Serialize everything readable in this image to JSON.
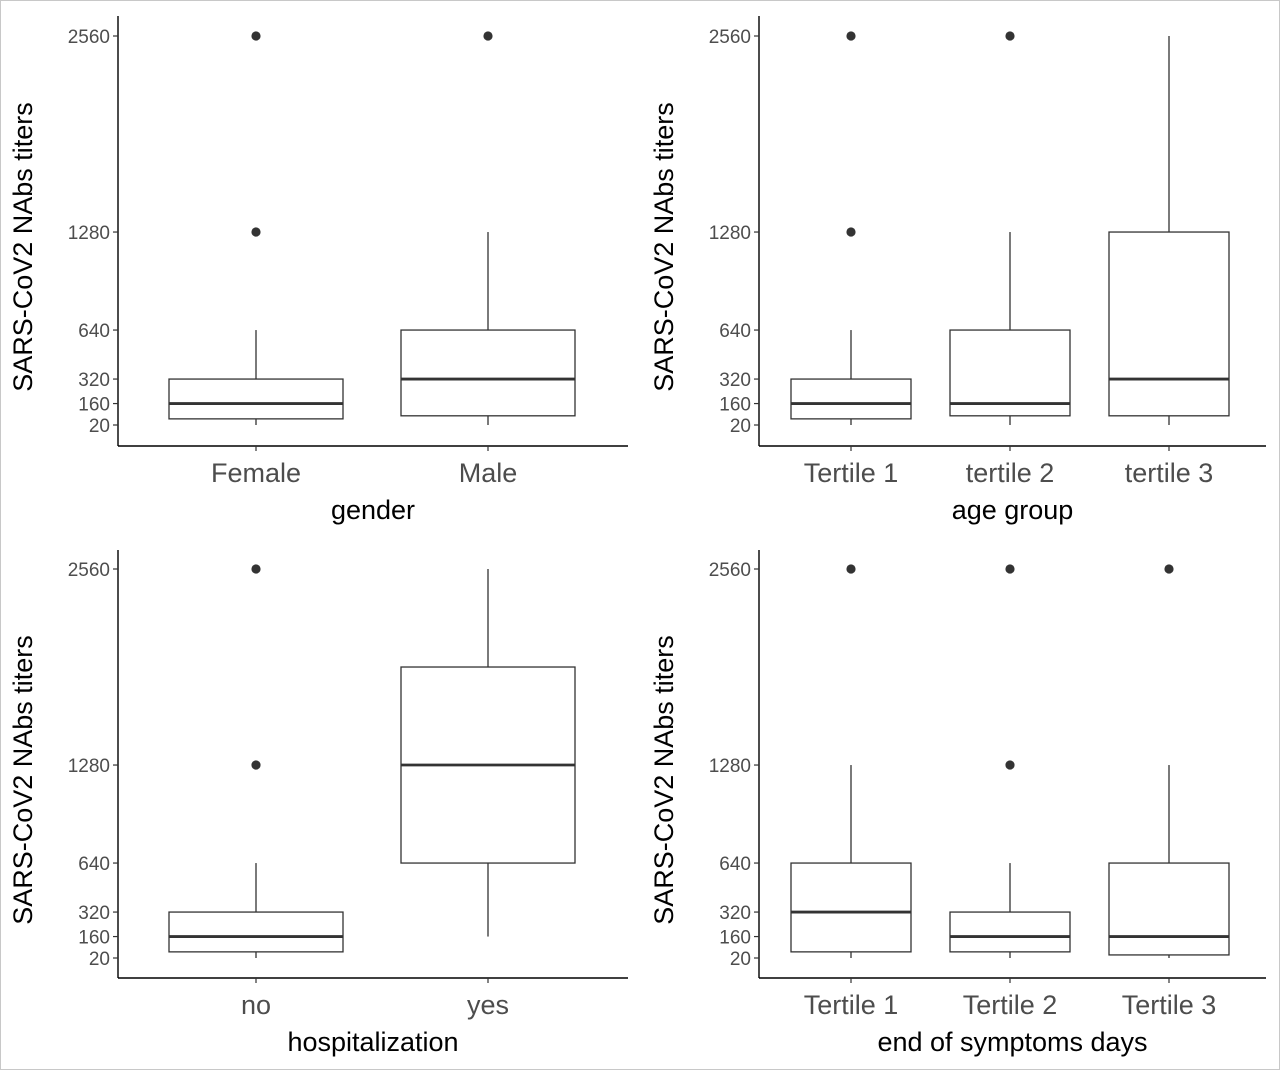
{
  "chart_data": [
    {
      "type": "box",
      "xlabel": "gender",
      "ylabel": "SARS-CoV2 NAbs titers",
      "yticks": [
        20,
        160,
        320,
        640,
        1280,
        2560
      ],
      "ylim": [
        20,
        2560
      ],
      "categories": [
        "Female",
        "Male"
      ],
      "boxes": [
        {
          "category": "Female",
          "lower_whisker": 20,
          "q1": 60,
          "median": 160,
          "q3": 320,
          "upper_whisker": 640,
          "outliers": [
            1280,
            2560
          ]
        },
        {
          "category": "Male",
          "lower_whisker": 20,
          "q1": 80,
          "median": 320,
          "q3": 640,
          "upper_whisker": 1280,
          "outliers": [
            2560
          ]
        }
      ]
    },
    {
      "type": "box",
      "xlabel": "age group",
      "ylabel": "SARS-CoV2 NAbs titers",
      "yticks": [
        20,
        160,
        320,
        640,
        1280,
        2560
      ],
      "ylim": [
        20,
        2560
      ],
      "categories": [
        "Tertile 1",
        "tertile 2",
        "tertile 3"
      ],
      "boxes": [
        {
          "category": "Tertile 1",
          "lower_whisker": 20,
          "q1": 60,
          "median": 160,
          "q3": 320,
          "upper_whisker": 640,
          "outliers": [
            1280,
            2560
          ]
        },
        {
          "category": "tertile 2",
          "lower_whisker": 20,
          "q1": 80,
          "median": 160,
          "q3": 640,
          "upper_whisker": 1280,
          "outliers": [
            2560
          ]
        },
        {
          "category": "tertile 3",
          "lower_whisker": 20,
          "q1": 80,
          "median": 320,
          "q3": 1280,
          "upper_whisker": 2560,
          "outliers": []
        }
      ]
    },
    {
      "type": "box",
      "xlabel": "hospitalization",
      "ylabel": "SARS-CoV2 NAbs titers",
      "yticks": [
        20,
        160,
        320,
        640,
        1280,
        2560
      ],
      "ylim": [
        20,
        2560
      ],
      "categories": [
        "no",
        "yes"
      ],
      "boxes": [
        {
          "category": "no",
          "lower_whisker": 20,
          "q1": 60,
          "median": 160,
          "q3": 320,
          "upper_whisker": 640,
          "outliers": [
            1280,
            2560
          ]
        },
        {
          "category": "yes",
          "lower_whisker": 160,
          "q1": 640,
          "median": 1280,
          "q3": 1920,
          "upper_whisker": 2560,
          "outliers": []
        }
      ]
    },
    {
      "type": "box",
      "xlabel": "end of symptoms days",
      "ylabel": "SARS-CoV2 NAbs titers",
      "yticks": [
        20,
        160,
        320,
        640,
        1280,
        2560
      ],
      "ylim": [
        20,
        2560
      ],
      "categories": [
        "Tertile 1",
        "Tertile 2",
        "Tertile 3"
      ],
      "boxes": [
        {
          "category": "Tertile 1",
          "lower_whisker": 20,
          "q1": 60,
          "median": 320,
          "q3": 640,
          "upper_whisker": 1280,
          "outliers": [
            2560
          ]
        },
        {
          "category": "Tertile 2",
          "lower_whisker": 20,
          "q1": 60,
          "median": 160,
          "q3": 320,
          "upper_whisker": 640,
          "outliers": [
            1280,
            2560
          ]
        },
        {
          "category": "Tertile 3",
          "lower_whisker": 20,
          "q1": 40,
          "median": 160,
          "q3": 640,
          "upper_whisker": 1280,
          "outliers": [
            2560
          ]
        }
      ]
    }
  ]
}
